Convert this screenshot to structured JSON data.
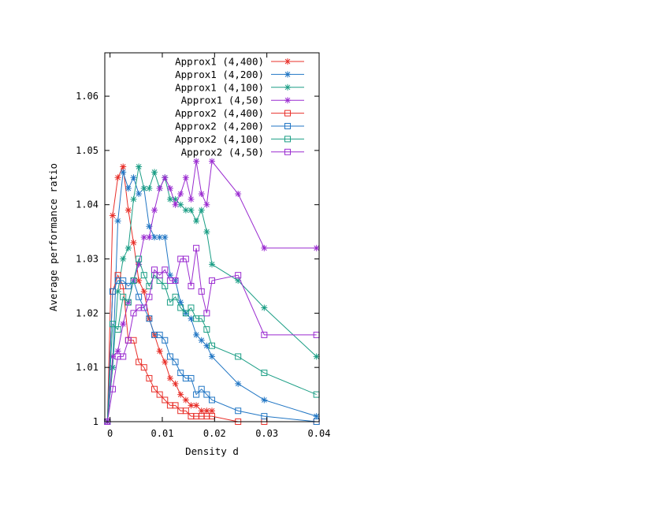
{
  "chart_data": {
    "type": "line",
    "xlabel": "Density d",
    "ylabel": "Average performance ratio",
    "xlim": [
      -0.001,
      0.04
    ],
    "ylim": [
      1.0,
      1.068
    ],
    "xticks": [
      0,
      0.01,
      0.02,
      0.03,
      0.04
    ],
    "xtick_labels": [
      "0",
      "0.01",
      "0.02",
      "0.03",
      "0.04"
    ],
    "yticks": [
      1.0,
      1.01,
      1.02,
      1.03,
      1.04,
      1.05,
      1.06
    ],
    "ytick_labels": [
      "1",
      "1.01",
      "1.02",
      "1.03",
      "1.04",
      "1.05",
      "1.06"
    ],
    "grid": false,
    "legend_position": "top-right",
    "series": [
      {
        "name": "Approx1 (4,400)",
        "color": "#e8302a",
        "marker": "star",
        "x": [
          -0.0005,
          0.0005,
          0.0015,
          0.0025,
          0.0035,
          0.0045,
          0.0055,
          0.0065,
          0.0075,
          0.0085,
          0.0095,
          0.0105,
          0.0115,
          0.0125,
          0.0135,
          0.0145,
          0.0155,
          0.0165,
          0.0175,
          0.0185,
          0.0195
        ],
        "y": [
          1.0,
          1.038,
          1.045,
          1.047,
          1.039,
          1.033,
          1.026,
          1.024,
          1.019,
          1.016,
          1.013,
          1.011,
          1.008,
          1.007,
          1.005,
          1.004,
          1.003,
          1.003,
          1.002,
          1.002,
          1.002
        ]
      },
      {
        "name": "Approx1 (4,200)",
        "color": "#2176c4",
        "marker": "star",
        "x": [
          -0.0005,
          0.0005,
          0.0015,
          0.0025,
          0.0035,
          0.0045,
          0.0055,
          0.0065,
          0.0075,
          0.0085,
          0.0095,
          0.0105,
          0.0115,
          0.0125,
          0.0135,
          0.0145,
          0.0155,
          0.0165,
          0.0175,
          0.0185,
          0.0195,
          0.0245,
          0.0295,
          0.0395
        ],
        "y": [
          1.0,
          1.01,
          1.037,
          1.046,
          1.043,
          1.045,
          1.042,
          1.043,
          1.036,
          1.034,
          1.034,
          1.034,
          1.027,
          1.026,
          1.022,
          1.02,
          1.019,
          1.016,
          1.015,
          1.014,
          1.012,
          1.007,
          1.004,
          1.001
        ]
      },
      {
        "name": "Approx1 (4,100)",
        "color": "#1b9e85",
        "marker": "star",
        "x": [
          -0.0005,
          0.0005,
          0.0015,
          0.0025,
          0.0035,
          0.0045,
          0.0055,
          0.0065,
          0.0075,
          0.0085,
          0.0095,
          0.0105,
          0.0115,
          0.0125,
          0.0135,
          0.0145,
          0.0155,
          0.0165,
          0.0175,
          0.0185,
          0.0195,
          0.0245,
          0.0295,
          0.0395
        ],
        "y": [
          1.0,
          1.01,
          1.024,
          1.03,
          1.032,
          1.041,
          1.047,
          1.043,
          1.043,
          1.046,
          1.043,
          1.045,
          1.041,
          1.041,
          1.04,
          1.039,
          1.039,
          1.037,
          1.039,
          1.035,
          1.029,
          1.026,
          1.021,
          1.012
        ]
      },
      {
        "name": "Approx1 (4,50)",
        "color": "#9a2bd0",
        "marker": "star",
        "x": [
          -0.0005,
          0.0005,
          0.0015,
          0.0025,
          0.0035,
          0.0045,
          0.0055,
          0.0065,
          0.0075,
          0.0085,
          0.0095,
          0.0105,
          0.0115,
          0.0125,
          0.0135,
          0.0145,
          0.0155,
          0.0165,
          0.0175,
          0.0185,
          0.0195,
          0.0245,
          0.0295,
          0.0395
        ],
        "y": [
          1.0,
          1.012,
          1.013,
          1.018,
          1.022,
          1.026,
          1.029,
          1.034,
          1.034,
          1.039,
          1.043,
          1.045,
          1.043,
          1.04,
          1.042,
          1.045,
          1.041,
          1.048,
          1.042,
          1.04,
          1.048,
          1.042,
          1.032,
          1.032
        ]
      },
      {
        "name": "Approx2 (4,400)",
        "color": "#e8302a",
        "marker": "square",
        "x": [
          -0.0005,
          0.0005,
          0.0015,
          0.0025,
          0.0035,
          0.0045,
          0.0055,
          0.0065,
          0.0075,
          0.0085,
          0.0095,
          0.0105,
          0.0115,
          0.0125,
          0.0135,
          0.0145,
          0.0155,
          0.0165,
          0.0175,
          0.0185,
          0.0195,
          0.0245,
          0.0295,
          0.0395
        ],
        "y": [
          1.0,
          1.024,
          1.027,
          1.025,
          1.015,
          1.015,
          1.011,
          1.01,
          1.008,
          1.006,
          1.005,
          1.004,
          1.003,
          1.003,
          1.002,
          1.002,
          1.001,
          1.001,
          1.001,
          1.001,
          1.001,
          1.0,
          1.0,
          1.0
        ]
      },
      {
        "name": "Approx2 (4,200)",
        "color": "#2176c4",
        "marker": "square",
        "x": [
          -0.0005,
          0.0005,
          0.0015,
          0.0025,
          0.0035,
          0.0045,
          0.0055,
          0.0065,
          0.0075,
          0.0085,
          0.0095,
          0.0105,
          0.0115,
          0.0125,
          0.0135,
          0.0145,
          0.0155,
          0.0165,
          0.0175,
          0.0185,
          0.0195,
          0.0245,
          0.0295,
          0.0395
        ],
        "y": [
          1.0,
          1.024,
          1.026,
          1.026,
          1.025,
          1.026,
          1.023,
          1.021,
          1.019,
          1.016,
          1.016,
          1.015,
          1.012,
          1.011,
          1.009,
          1.008,
          1.008,
          1.005,
          1.006,
          1.005,
          1.004,
          1.002,
          1.001,
          1.0
        ]
      },
      {
        "name": "Approx2 (4,100)",
        "color": "#1b9e85",
        "marker": "square",
        "x": [
          -0.0005,
          0.0005,
          0.0015,
          0.0025,
          0.0035,
          0.0045,
          0.0055,
          0.0065,
          0.0075,
          0.0085,
          0.0095,
          0.0105,
          0.0115,
          0.0125,
          0.0135,
          0.0145,
          0.0155,
          0.0165,
          0.0175,
          0.0185,
          0.0195,
          0.0245,
          0.0295,
          0.0395
        ],
        "y": [
          1.0,
          1.018,
          1.017,
          1.023,
          1.022,
          1.026,
          1.03,
          1.027,
          1.025,
          1.027,
          1.026,
          1.025,
          1.022,
          1.023,
          1.021,
          1.02,
          1.021,
          1.019,
          1.019,
          1.017,
          1.014,
          1.012,
          1.009,
          1.005
        ]
      },
      {
        "name": "Approx2 (4,50)",
        "color": "#9a2bd0",
        "marker": "square",
        "x": [
          -0.0005,
          0.0005,
          0.0015,
          0.0025,
          0.0035,
          0.0045,
          0.0055,
          0.0065,
          0.0075,
          0.0085,
          0.0095,
          0.0105,
          0.0115,
          0.0125,
          0.0135,
          0.0145,
          0.0155,
          0.0165,
          0.0175,
          0.0185,
          0.0195,
          0.0245,
          0.0295,
          0.0395
        ],
        "y": [
          1.0,
          1.006,
          1.012,
          1.012,
          1.015,
          1.02,
          1.021,
          1.021,
          1.023,
          1.028,
          1.027,
          1.028,
          1.026,
          1.026,
          1.03,
          1.03,
          1.025,
          1.032,
          1.024,
          1.02,
          1.026,
          1.027,
          1.016,
          1.016
        ]
      }
    ]
  }
}
